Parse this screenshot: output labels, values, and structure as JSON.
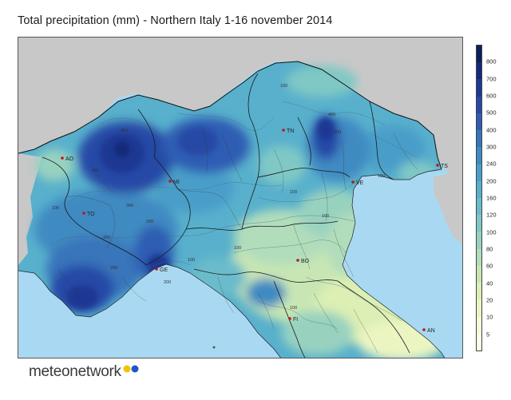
{
  "title": "Total precipitation (mm) - Northern Italy 1-16 november 2014",
  "logo": {
    "text": "meteonetwork",
    "dot_colors": [
      "#f2c200",
      "#1f56c7"
    ]
  },
  "colorbar": {
    "ticks": [
      "800",
      "700",
      "600",
      "500",
      "400",
      "300",
      "240",
      "200",
      "160",
      "120",
      "100",
      "80",
      "60",
      "40",
      "20",
      "10",
      "5"
    ],
    "colors": [
      "#0b1f5c",
      "#13297a",
      "#1c3993",
      "#2848a6",
      "#2f5db3",
      "#3774ba",
      "#3f8ac2",
      "#4a9ec9",
      "#58b0cc",
      "#6abccb",
      "#7fc8c5",
      "#98d2bf",
      "#b1ddbb",
      "#c8e6b4",
      "#dcefb4",
      "#ebf5c2",
      "#f6fbd8",
      "#fdfee8"
    ]
  },
  "cities": [
    {
      "code": "AO"
    },
    {
      "code": "TO"
    },
    {
      "code": "MI"
    },
    {
      "code": "GE"
    },
    {
      "code": "TN"
    },
    {
      "code": "VE"
    },
    {
      "code": "TS"
    },
    {
      "code": "BO"
    },
    {
      "code": "FI"
    },
    {
      "code": "AN"
    }
  ],
  "contour_labels": [
    "400",
    "400",
    "300",
    "400",
    "200",
    "200",
    "100",
    "200",
    "100",
    "200",
    "100",
    "100",
    "100",
    "100",
    "100",
    "300",
    "100"
  ]
}
